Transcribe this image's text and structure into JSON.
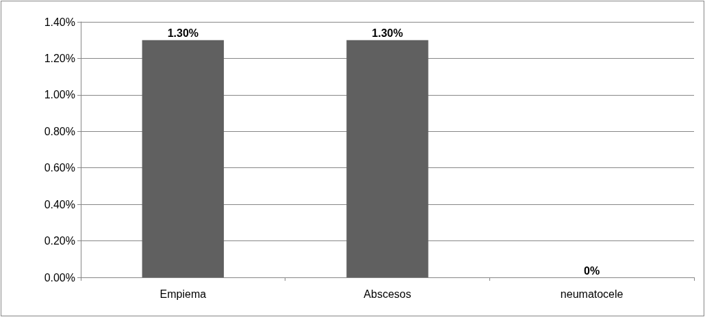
{
  "chart_data": {
    "type": "bar",
    "categories": [
      "Empiema",
      "Abscesos",
      "neumatocele"
    ],
    "values": [
      1.3,
      1.3,
      0
    ],
    "value_labels": [
      "1.30%",
      "1.30%",
      "0%"
    ],
    "color": "#606060",
    "ylim": [
      0,
      1.4
    ],
    "yticks": [
      {
        "value": 0,
        "label": "0.00%"
      },
      {
        "value": 0.2,
        "label": "0.20%"
      },
      {
        "value": 0.4,
        "label": "0.40%"
      },
      {
        "value": 0.6,
        "label": "0.60%"
      },
      {
        "value": 0.8,
        "label": "0.80%"
      },
      {
        "value": 1.0,
        "label": "1.00%"
      },
      {
        "value": 1.2,
        "label": "1.20%"
      },
      {
        "value": 1.4,
        "label": "1.40%"
      }
    ],
    "grid": "y"
  }
}
